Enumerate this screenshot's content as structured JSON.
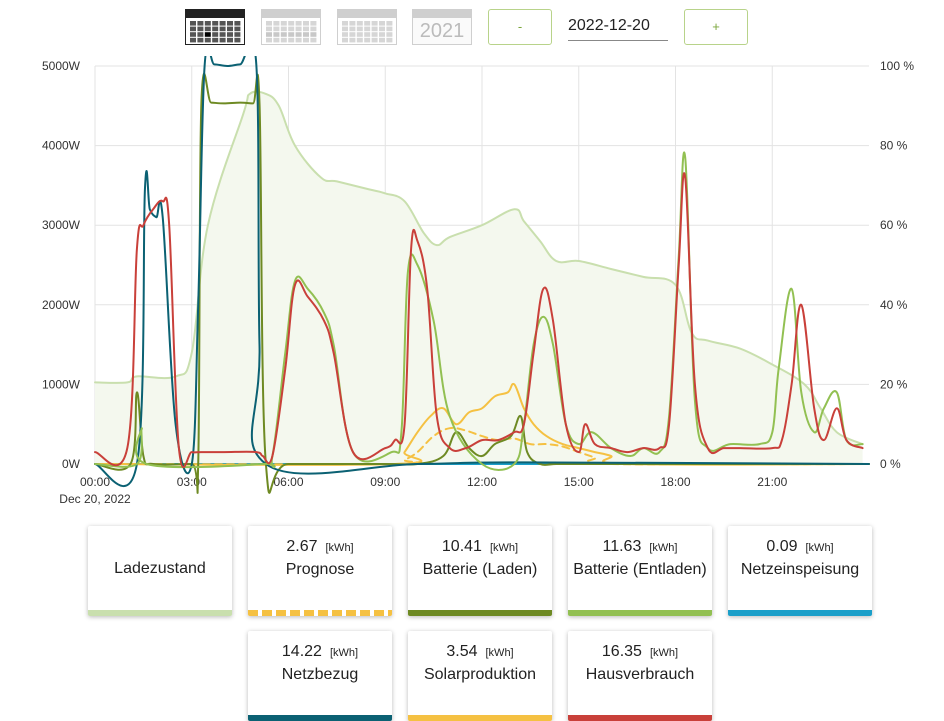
{
  "toolbar": {
    "view_day_icon": "calendar-day-icon",
    "view_week_icon": "calendar-week-icon",
    "view_month_icon": "calendar-month-icon",
    "year_label": "2021",
    "prev_label": "-",
    "date_value": "2022-12-20",
    "next_label": "+"
  },
  "chart_data": {
    "type": "line",
    "x_ticks": [
      "00:00",
      "03:00",
      "06:00",
      "09:00",
      "12:00",
      "15:00",
      "18:00",
      "21:00"
    ],
    "x_date_label": "Dec 20, 2022",
    "y_left_ticks": [
      "0W",
      "1000W",
      "2000W",
      "3000W",
      "4000W",
      "5000W"
    ],
    "y_right_ticks": [
      "0 %",
      "20 %",
      "40 %",
      "60 %",
      "80 %",
      "100 %"
    ],
    "y_left_range": [
      0,
      5000
    ],
    "y_right_range": [
      0,
      100
    ],
    "x_range_hours": [
      0,
      24
    ],
    "grid": true,
    "colors": {
      "soc": "#c9dfae",
      "soc_fill": "#f4f8ee",
      "forecast": "#f5c142",
      "battery_charge": "#6e8a23",
      "battery_discharge": "#92c052",
      "grid_feed": "#1b9fc9",
      "grid_draw": "#0b6173",
      "solar": "#f5c142",
      "house": "#c9403a"
    },
    "series": [
      {
        "name": "Ladezustand",
        "axis": "right",
        "x": [
          0,
          1.0,
          1.3,
          2.5,
          3.0,
          3.5,
          4.6,
          4.8,
          5.3,
          5.7,
          6.2,
          7.0,
          7.5,
          8.5,
          9.0,
          9.6,
          10.2,
          10.6,
          11.0,
          12.0,
          13.0,
          13.3,
          13.8,
          14.3,
          15.0,
          16.0,
          17.0,
          18.0,
          18.5,
          19.0,
          20.0,
          21.0,
          22.0,
          22.5,
          23.0,
          23.8
        ],
        "values": [
          20.5,
          20.5,
          22,
          22,
          28,
          60,
          88,
          93,
          93,
          90,
          80,
          72,
          71,
          69,
          68,
          66,
          58,
          55,
          57,
          60,
          64,
          61,
          56,
          51,
          51,
          49,
          47,
          45,
          33,
          31,
          29,
          25,
          20,
          14,
          8,
          5
        ]
      },
      {
        "name": "Prognose",
        "axis": "left",
        "dashed": true,
        "x": [
          0,
          9.3,
          9.6,
          10.0,
          10.5,
          11.0,
          11.5,
          12.0,
          12.5,
          13.0,
          13.5,
          14.0,
          14.5,
          15.0,
          15.5,
          16.0,
          24
        ],
        "values": [
          0,
          0,
          50,
          150,
          350,
          450,
          420,
          350,
          300,
          320,
          250,
          250,
          220,
          150,
          80,
          0,
          0
        ]
      },
      {
        "name": "Batterie (Laden)",
        "axis": "left",
        "x": [
          0,
          1.1,
          1.3,
          1.5,
          1.8,
          3.0,
          3.2,
          3.3,
          3.6,
          4.0,
          4.5,
          4.9,
          5.1,
          5.3,
          6.0,
          9.0,
          10.0,
          10.8,
          11.2,
          11.6,
          12.0,
          12.4,
          12.9,
          13.2,
          13.4,
          13.8,
          14.3,
          15.0,
          16.0,
          17.0,
          24
        ],
        "values": [
          0,
          0,
          900,
          100,
          0,
          0,
          0,
          4540,
          4540,
          4530,
          4540,
          4530,
          4530,
          0,
          0,
          0,
          0,
          100,
          400,
          200,
          100,
          250,
          350,
          600,
          150,
          0,
          0,
          0,
          0,
          0,
          0
        ]
      },
      {
        "name": "Batterie (Entladen)",
        "axis": "left",
        "x": [
          0,
          1.3,
          1.45,
          1.6,
          5.2,
          5.5,
          5.9,
          6.2,
          6.6,
          7.1,
          7.4,
          8.0,
          9.2,
          9.5,
          9.7,
          10.0,
          10.5,
          11.0,
          12.0,
          13.0,
          13.3,
          13.6,
          13.9,
          14.2,
          14.6,
          15.0,
          15.4,
          16.0,
          16.6,
          17.0,
          17.5,
          17.8,
          18.1,
          18.3,
          18.6,
          19.0,
          19.7,
          20.6,
          21.0,
          21.2,
          21.6,
          21.9,
          22.3,
          22.6,
          23.0,
          23.3,
          23.8
        ],
        "values": [
          0,
          0,
          450,
          0,
          0,
          100,
          1400,
          2300,
          2200,
          1900,
          1500,
          150,
          150,
          400,
          2400,
          2500,
          1800,
          600,
          0,
          0,
          500,
          1500,
          1850,
          1500,
          500,
          250,
          400,
          200,
          100,
          200,
          150,
          600,
          2600,
          3850,
          800,
          200,
          250,
          250,
          400,
          1200,
          2200,
          900,
          400,
          700,
          900,
          300,
          250
        ]
      },
      {
        "name": "Netzeinspeisung",
        "axis": "left",
        "x": [
          0,
          24
        ],
        "values": [
          0,
          0
        ]
      },
      {
        "name": "Netzbezug",
        "axis": "left",
        "x": [
          0,
          1.3,
          1.55,
          1.7,
          1.9,
          2.1,
          2.5,
          3.0,
          3.2,
          3.4,
          3.7,
          4.1,
          4.5,
          5.0,
          5.1,
          5.3,
          10.0,
          13.3,
          24
        ],
        "values": [
          0,
          0,
          3470,
          3200,
          3100,
          3100,
          500,
          0,
          2000,
          5000,
          5020,
          5000,
          5020,
          5020,
          1500,
          0,
          0,
          20,
          0
        ]
      },
      {
        "name": "Solarproduktion",
        "axis": "left",
        "x": [
          0,
          9.3,
          9.6,
          10.0,
          10.4,
          10.8,
          11.2,
          11.6,
          12.0,
          12.4,
          12.8,
          13.0,
          13.3,
          13.6,
          14.0,
          14.5,
          15.0,
          15.5,
          16.0,
          16.5,
          24
        ],
        "values": [
          0,
          0,
          150,
          400,
          600,
          700,
          500,
          650,
          700,
          850,
          900,
          1000,
          700,
          500,
          350,
          250,
          200,
          150,
          100,
          0,
          0
        ]
      },
      {
        "name": "Hausverbrauch",
        "axis": "left",
        "x": [
          0,
          1.0,
          1.3,
          1.5,
          1.8,
          2.1,
          2.3,
          2.6,
          3.0,
          3.3,
          4.0,
          5.0,
          5.2,
          5.5,
          5.9,
          6.2,
          6.6,
          7.1,
          7.4,
          8.0,
          9.0,
          9.3,
          9.6,
          9.8,
          10.0,
          10.3,
          10.6,
          11.0,
          11.5,
          12.0,
          12.5,
          13.0,
          13.3,
          13.6,
          13.9,
          14.2,
          14.6,
          15.0,
          15.2,
          15.5,
          16.0,
          16.5,
          17.0,
          17.5,
          17.8,
          18.1,
          18.3,
          18.6,
          19.0,
          19.5,
          20.0,
          21.0,
          21.3,
          21.6,
          21.9,
          22.3,
          22.6,
          23.0,
          23.3,
          23.8
        ],
        "values": [
          150,
          200,
          2700,
          3000,
          3200,
          3300,
          3000,
          200,
          150,
          150,
          150,
          150,
          100,
          100,
          1200,
          2250,
          2100,
          1800,
          1400,
          150,
          200,
          300,
          500,
          2700,
          2800,
          2200,
          600,
          200,
          200,
          300,
          300,
          400,
          500,
          1400,
          2200,
          1800,
          500,
          150,
          500,
          250,
          200,
          150,
          200,
          200,
          500,
          2500,
          3600,
          1000,
          200,
          200,
          200,
          200,
          300,
          1000,
          2000,
          700,
          300,
          700,
          300,
          200
        ]
      }
    ]
  },
  "cards": [
    {
      "value": "",
      "unit": "",
      "label": "Ladezustand",
      "color": "#c9dfae",
      "style": "solid"
    },
    {
      "value": "2.67",
      "unit": "[kWh]",
      "label": "Prognose",
      "color": "#f5c142",
      "style": "dashed"
    },
    {
      "value": "10.41",
      "unit": "[kWh]",
      "label": "Batterie (Laden)",
      "color": "#6e8a23",
      "style": "solid"
    },
    {
      "value": "11.63",
      "unit": "[kWh]",
      "label": "Batterie (Entladen)",
      "color": "#92c052",
      "style": "solid"
    },
    {
      "value": "0.09",
      "unit": "[kWh]",
      "label": "Netzeinspeisung",
      "color": "#1b9fc9",
      "style": "solid"
    },
    {
      "value": "14.22",
      "unit": "[kWh]",
      "label": "Netzbezug",
      "color": "#0b6173",
      "style": "solid"
    },
    {
      "value": "3.54",
      "unit": "[kWh]",
      "label": "Solarproduktion",
      "color": "#f5c142",
      "style": "solid"
    },
    {
      "value": "16.35",
      "unit": "[kWh]",
      "label": "Hausverbrauch",
      "color": "#c9403a",
      "style": "solid"
    }
  ]
}
